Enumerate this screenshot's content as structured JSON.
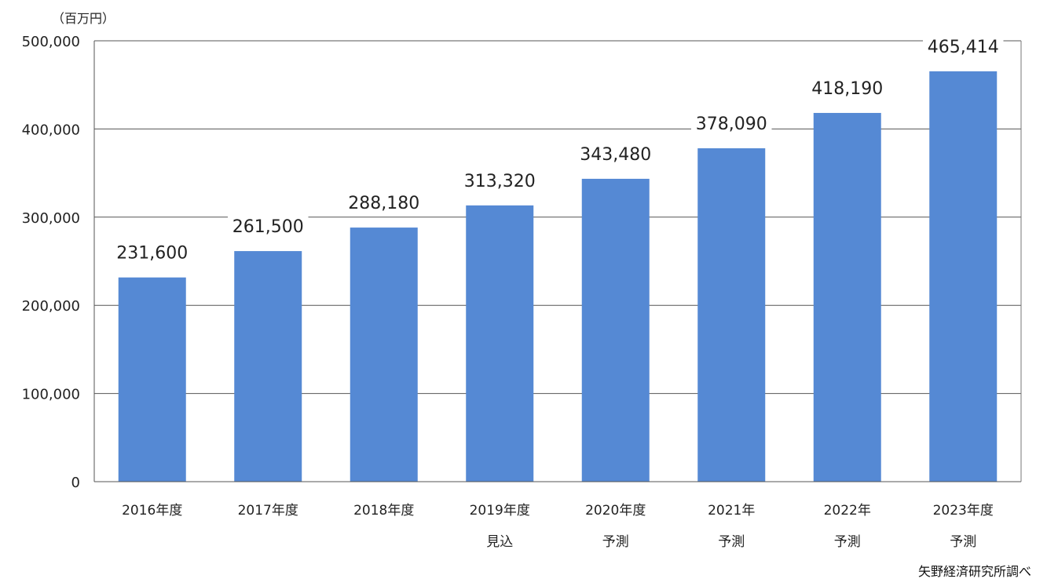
{
  "chart_data": {
    "type": "bar",
    "unit": "（百万円）",
    "categories": [
      [
        "2016年度"
      ],
      [
        "2017年度"
      ],
      [
        "2018年度"
      ],
      [
        "2019年度",
        "見込"
      ],
      [
        "2020年度",
        "予測"
      ],
      [
        "2021年",
        "予測"
      ],
      [
        "2022年",
        "予測"
      ],
      [
        "2023年度",
        "予測"
      ]
    ],
    "values": [
      231600,
      261500,
      288180,
      313320,
      343480,
      378090,
      418190,
      465414
    ],
    "data_labels": [
      "231,600",
      "261,500",
      "288,180",
      "313,320",
      "343,480",
      "378,090",
      "418,190",
      "465,414"
    ],
    "ylim": [
      0,
      500000
    ],
    "yticks": [
      0,
      100000,
      200000,
      300000,
      400000,
      500000
    ],
    "ytick_labels": [
      "0",
      "100,000",
      "200,000",
      "300,000",
      "400,000",
      "500,000"
    ],
    "grid": true,
    "bar_color": "#5589d4",
    "source": "矢野経済研究所調べ"
  }
}
